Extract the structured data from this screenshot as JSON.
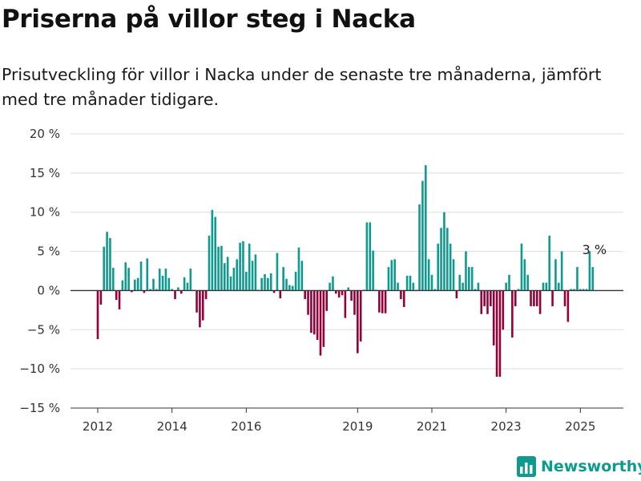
{
  "title": "Priserna på villor steg i Nacka",
  "subtitle": "Prisutveckling för villor i Nacka under de senaste tre månaderna, jämfört med tre månader tidigare.",
  "brand": {
    "name": "Newsworthy",
    "icon": "bar-chart-logo-icon"
  },
  "colors": {
    "positive": "#0e9a8f",
    "negative": "#960038",
    "grid": "#dddddd",
    "axis": "#333333",
    "brand": "#0e9a8f"
  },
  "chart_data": {
    "type": "bar",
    "ylim": [
      -15,
      20
    ],
    "y_ticks": [
      20,
      15,
      10,
      5,
      0,
      -5,
      -10,
      -15
    ],
    "y_tick_labels": [
      "20 %",
      "15 %",
      "10 %",
      "5 %",
      "0 %",
      "−5 %",
      "−10 %",
      "−15 %"
    ],
    "x_ticks": [
      2012,
      2014,
      2016,
      2019,
      2021,
      2023,
      2025
    ],
    "x_tick_labels": [
      "2012",
      "2014",
      "2016",
      "2019",
      "2021",
      "2023",
      "2025"
    ],
    "grid": true,
    "start": "2012-01",
    "frequency": "monthly",
    "last_label": "3 %",
    "values": [
      -6.2,
      -1.8,
      5.6,
      7.5,
      6.7,
      2.9,
      -1.2,
      -2.4,
      1.3,
      3.6,
      2.9,
      -0.2,
      1.4,
      1.6,
      3.7,
      -0.3,
      4.1,
      0.2,
      1.5,
      0.2,
      2.8,
      1.9,
      2.8,
      1.6,
      0.2,
      -1.1,
      0.4,
      -0.4,
      1.7,
      1.0,
      2.8,
      0.1,
      -2.8,
      -4.7,
      -3.8,
      -1.1,
      7.0,
      10.3,
      9.4,
      5.6,
      5.7,
      3.5,
      4.3,
      1.8,
      2.9,
      4.0,
      6.1,
      6.3,
      2.4,
      6.0,
      3.8,
      4.6,
      0.1,
      1.6,
      2.1,
      1.6,
      2.2,
      -0.3,
      4.8,
      -1.0,
      3.0,
      1.5,
      0.7,
      0.6,
      2.4,
      5.5,
      3.8,
      -1.1,
      -3.1,
      -5.4,
      -5.6,
      -6.3,
      -8.3,
      -7.2,
      -2.6,
      1.0,
      1.8,
      -0.4,
      -0.9,
      -0.6,
      -3.5,
      0.4,
      -1.3,
      -3.1,
      -8.0,
      -6.5,
      0.1,
      8.7,
      8.7,
      5.1,
      0.1,
      -2.8,
      -2.9,
      -2.9,
      3.0,
      3.9,
      4.0,
      1.0,
      -1.1,
      -2.1,
      1.9,
      1.9,
      1.0,
      0.1,
      11.0,
      14.0,
      16.0,
      4.0,
      2.0,
      0.2,
      6.0,
      8.0,
      10.0,
      8.0,
      6.0,
      4.0,
      -1.0,
      2.0,
      1.0,
      5.0,
      3.0,
      3.0,
      0.2,
      1.0,
      -3.0,
      -2.0,
      -3.0,
      -2.0,
      -7.0,
      -11.0,
      -11.0,
      -5.0,
      1.0,
      2.0,
      -6.0,
      -2.0,
      0.2,
      6.0,
      4.0,
      2.0,
      -2.0,
      -2.0,
      -2.0,
      -3.0,
      1.0,
      1.0,
      7.0,
      -2.0,
      4.0,
      1.0,
      5.0,
      -2.0,
      -4.0,
      0.2,
      0.2,
      3.0,
      0.2,
      0.2,
      0.2,
      5.0,
      3.0
    ]
  }
}
